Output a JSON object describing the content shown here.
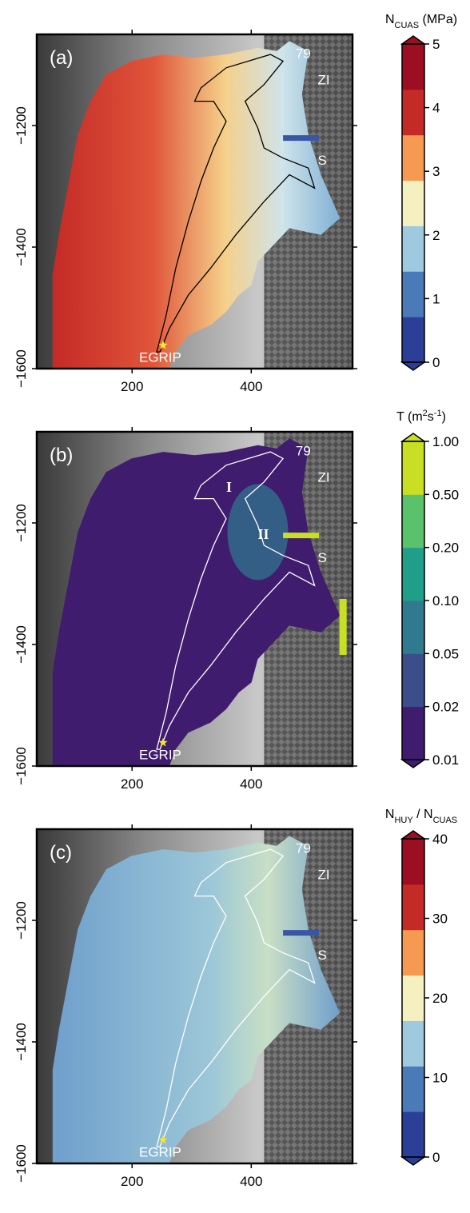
{
  "chart_data": [
    {
      "type": "heatmap",
      "panel_label": "(a)",
      "colorbar_title": "N<sub>CUAS</sub> (MPa)",
      "colorbar_ticks": [
        "0",
        "1",
        "2",
        "3",
        "4",
        "5"
      ],
      "colormap": [
        "#2b3f99",
        "#4a7bb8",
        "#9ec9de",
        "#f5f0c0",
        "#f59a50",
        "#c42a26",
        "#9c0f22"
      ],
      "xlim": [
        40,
        570
      ],
      "ylim": [
        -1600,
        -1050
      ],
      "xticks": [
        "200",
        "400"
      ],
      "yticks": [
        "-1200",
        "-1400",
        "-1600"
      ],
      "glacier_labels": [
        "79",
        "ZI",
        "S"
      ],
      "site_label": "EGRIP",
      "outline_color": "#000000"
    },
    {
      "type": "heatmap",
      "panel_label": "(b)",
      "colorbar_title": "T (m<sup>2</sup>s<sup>-1</sup>)",
      "colorbar_ticks": [
        "0.01",
        "0.02",
        "0.05",
        "0.10",
        "0.20",
        "0.50",
        "1.00"
      ],
      "colormap": [
        "#3f1c6e",
        "#3b4e8c",
        "#2f7a8e",
        "#1f9e89",
        "#59c26a",
        "#c8df24"
      ],
      "xlim": [
        40,
        570
      ],
      "ylim": [
        -1600,
        -1050
      ],
      "xticks": [
        "200",
        "400"
      ],
      "yticks": [
        "-1200",
        "-1400",
        "-1600"
      ],
      "glacier_labels": [
        "79",
        "ZI",
        "S"
      ],
      "region_labels": [
        "I",
        "II"
      ],
      "site_label": "EGRIP",
      "outline_color": "#ffffff"
    },
    {
      "type": "heatmap",
      "panel_label": "(c)",
      "colorbar_title": "N<sub>HUY</sub> / N<sub>CUAS</sub>",
      "colorbar_ticks": [
        "0",
        "10",
        "20",
        "30",
        "40"
      ],
      "colormap": [
        "#2b3f99",
        "#4a7bb8",
        "#9ec9de",
        "#f5f0c0",
        "#f59a50",
        "#c42a26",
        "#9c0f22"
      ],
      "xlim": [
        40,
        570
      ],
      "ylim": [
        -1600,
        -1050
      ],
      "xticks": [
        "200",
        "400"
      ],
      "yticks": [
        "-1200",
        "-1400",
        "-1600"
      ],
      "glacier_labels": [
        "79",
        "ZI",
        "S"
      ],
      "site_label": "EGRIP",
      "outline_color": "#ffffff"
    }
  ]
}
